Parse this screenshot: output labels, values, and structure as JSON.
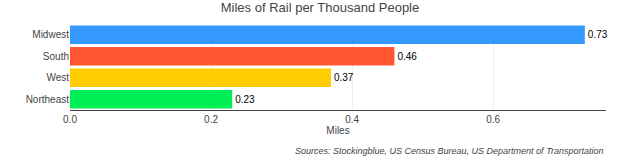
{
  "chart_data": {
    "type": "bar",
    "orientation": "horizontal",
    "title": "Miles of Rail per Thousand People",
    "categories": [
      "Northeast",
      "West",
      "South",
      "Midwest"
    ],
    "values": [
      0.23,
      0.37,
      0.46,
      0.73
    ],
    "colors": [
      "#00EE55",
      "#FFCC00",
      "#FF5533",
      "#3399FF"
    ],
    "xlabel": "Miles",
    "xlim": [
      0,
      0.76
    ],
    "xticks": [
      {
        "value": 0,
        "label": "0.0"
      },
      0.2,
      0.4,
      0.6
    ],
    "grid": true,
    "data_labels": true,
    "annotations": [
      "Sources: Stockingblue, US Census Bureau, US Department of Transportation"
    ]
  }
}
